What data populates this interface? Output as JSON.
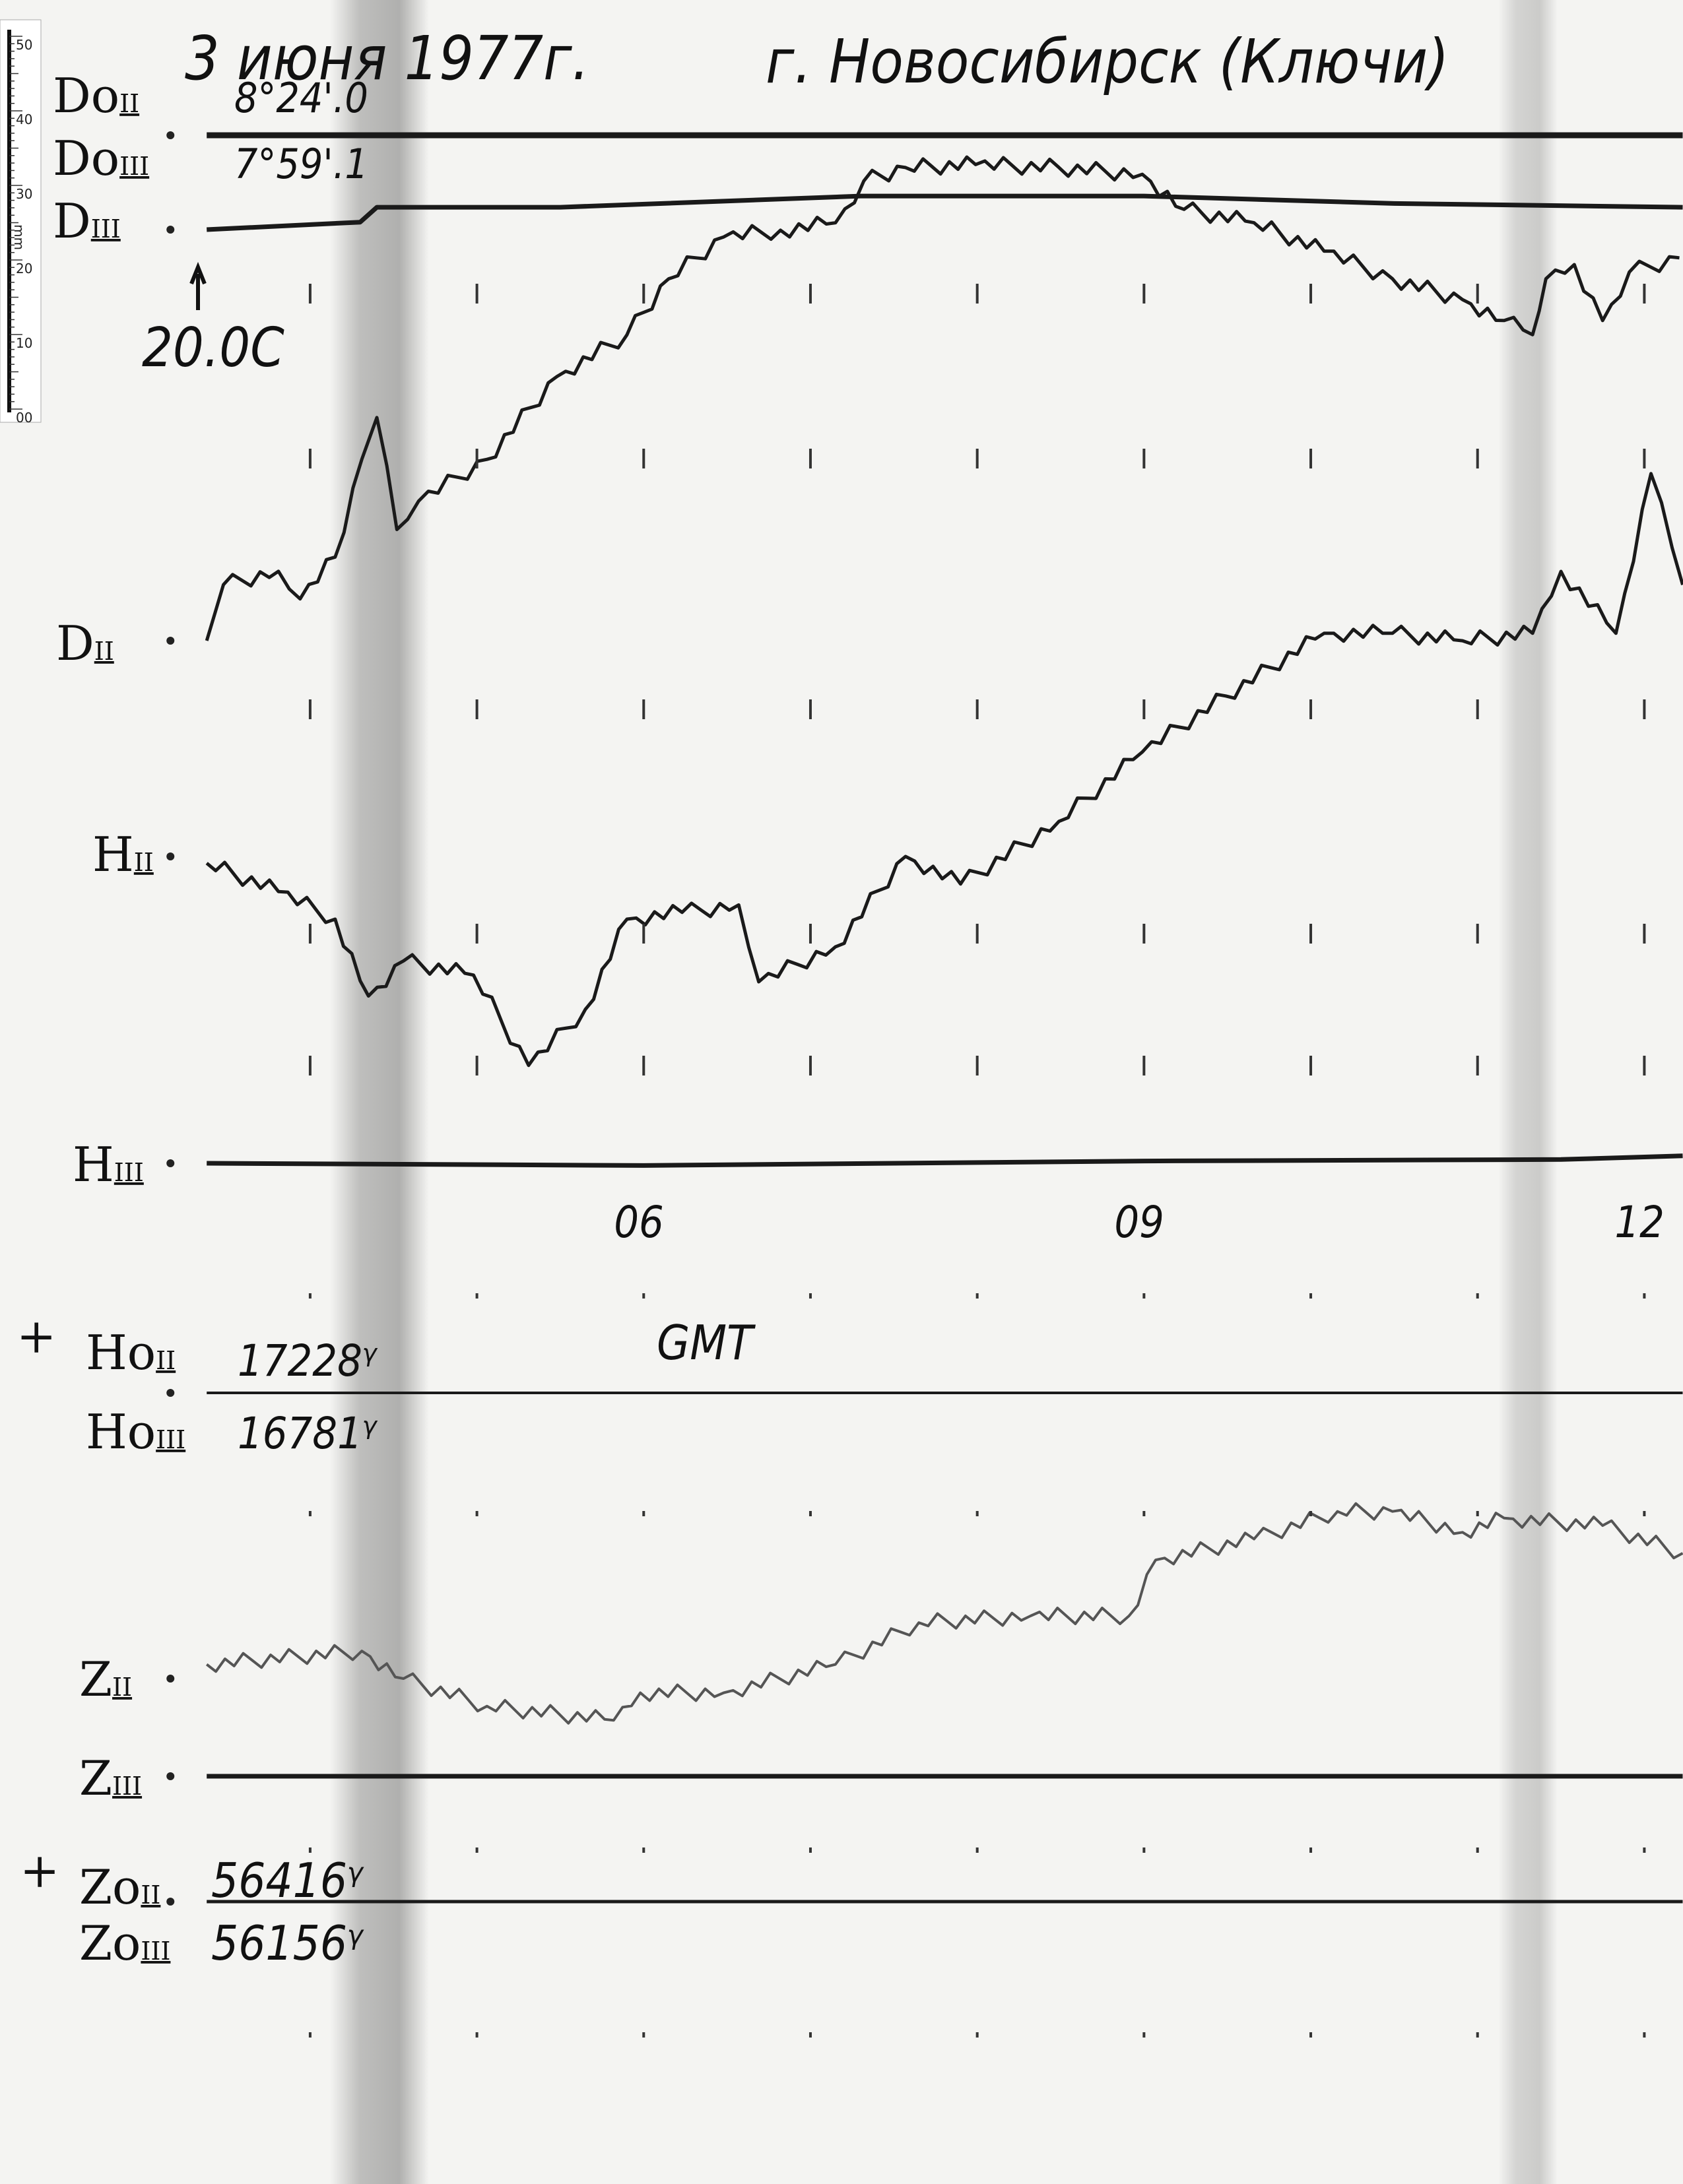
{
  "header": {
    "date": "3 июня 1977г.",
    "place": "г. Новосибирск (Ключи)"
  },
  "ruler": {
    "unit": "mm",
    "ticks": [
      "50",
      "40",
      "30",
      "20",
      "10",
      "00"
    ]
  },
  "labels": {
    "do2": {
      "base": "Do",
      "sub": "II",
      "value": "8°24'.0"
    },
    "do3": {
      "base": "Do",
      "sub": "III",
      "value": "7°59'.1"
    },
    "d3": {
      "base": "D",
      "sub": "III"
    },
    "d2": {
      "base": "D",
      "sub": "II"
    },
    "h2": {
      "base": "H",
      "sub": "II"
    },
    "h3": {
      "base": "H",
      "sub": "III"
    },
    "ho2": {
      "base": "Ho",
      "sub": "II",
      "value": "17228ᵞ"
    },
    "ho3": {
      "base": "Ho",
      "sub": "III",
      "value": "16781ᵞ"
    },
    "z2": {
      "base": "Z",
      "sub": "II"
    },
    "z3": {
      "base": "Z",
      "sub": "III"
    },
    "zo2": {
      "base": "Zo",
      "sub": "II",
      "value": "56416ᵞ"
    },
    "zo3": {
      "base": "Zo",
      "sub": "III",
      "value": "56156ᵞ"
    },
    "plus": "+",
    "temperature": "20.0C",
    "time_zone": "GMT"
  },
  "chart_data": {
    "type": "line",
    "title": "3 июня 1977г. г. Новосибирск (Ключи)",
    "xlabel": "GMT",
    "x_ticks": [
      "06",
      "09",
      "12"
    ],
    "x_tick_values": [
      6,
      9,
      12
    ],
    "xlim": [
      3.38,
      12.23
    ],
    "y_unit": "mm",
    "grid": false,
    "colors": {
      "trace": "#1a1a1a",
      "z_trace": "#555555",
      "paper": "#f4f4f2"
    },
    "series": [
      {
        "name": "D II",
        "x": [
          3.38,
          3.48,
          3.81,
          3.94,
          4.15,
          4.31,
          4.4,
          4.52,
          4.65,
          5.06,
          5.48,
          5.9,
          6.15,
          6.48,
          6.82,
          7.15,
          7.32,
          7.57,
          7.99,
          8.49,
          8.99,
          9.24,
          9.66,
          10.08,
          10.49,
          10.91,
          11.16,
          11.33,
          11.41,
          11.58,
          11.75,
          11.91,
          12.21
        ],
        "y": [
          0,
          7.5,
          9.3,
          5.6,
          11.2,
          24.3,
          29.9,
          14.9,
          18.7,
          24.3,
          35.4,
          41.0,
          48.5,
          54.1,
          55.0,
          56.0,
          61.6,
          63.4,
          63.8,
          63.4,
          62.5,
          57.8,
          56.0,
          52.2,
          48.5,
          45.7,
          42.9,
          41.0,
          48.5,
          50.4,
          42.9,
          49.4,
          51.3
        ]
      },
      {
        "name": "H II",
        "x": [
          3.38,
          3.81,
          4.15,
          4.35,
          4.56,
          4.98,
          5.31,
          5.65,
          5.9,
          6.23,
          6.57,
          6.69,
          7.15,
          7.57,
          7.9,
          8.49,
          8.99,
          9.49,
          10.08,
          10.49,
          10.91,
          11.33,
          11.5,
          11.83,
          12.04,
          12.23
        ],
        "y": [
          -0.9,
          -4.7,
          -8.4,
          -18.7,
          -14.0,
          -15.9,
          -28.0,
          -20.5,
          -8.4,
          -7.5,
          -6.5,
          -16.8,
          -12.1,
          0,
          -3.7,
          4.7,
          14.0,
          21.5,
          29.9,
          29.9,
          28.9,
          29.9,
          38.2,
          29.9,
          51.3,
          36.4
        ]
      },
      {
        "name": "Z II",
        "x": [
          3.38,
          4.31,
          4.56,
          5.06,
          5.82,
          5.98,
          6.48,
          7.15,
          7.65,
          8.32,
          8.91,
          9.07,
          9.66,
          10.16,
          10.49,
          10.91,
          11.16,
          11.75,
          12.23
        ],
        "y": [
          1.9,
          3.7,
          0,
          -3.7,
          -5.6,
          -1.9,
          -1.9,
          1.9,
          7.5,
          8.4,
          8.4,
          15.9,
          18.7,
          22.4,
          22.4,
          19.6,
          21.5,
          20.5,
          16.8
        ]
      },
      {
        "name": "D III",
        "x": [
          3.38,
          4.3,
          4.4,
          5.5,
          7.3,
          9.0,
          10.5,
          12.23
        ],
        "y": [
          0,
          1,
          3,
          3,
          4.5,
          4.5,
          3.5,
          3
        ]
      },
      {
        "name": "H III",
        "x": [
          3.38,
          6,
          9,
          11.5,
          12.23
        ],
        "y": [
          0,
          -0.3,
          0.3,
          0.5,
          1
        ]
      },
      {
        "name": "Z III",
        "x": [
          3.38,
          12.23
        ],
        "y": [
          0,
          0
        ]
      },
      {
        "name": "Do",
        "x": [
          3.38,
          12.23
        ],
        "y": [
          0,
          0
        ]
      },
      {
        "name": "Ho",
        "x": [
          3.38,
          12.23
        ],
        "y": [
          0,
          0
        ]
      },
      {
        "name": "Zo",
        "x": [
          3.38,
          12.23
        ],
        "y": [
          0,
          0
        ]
      }
    ]
  }
}
